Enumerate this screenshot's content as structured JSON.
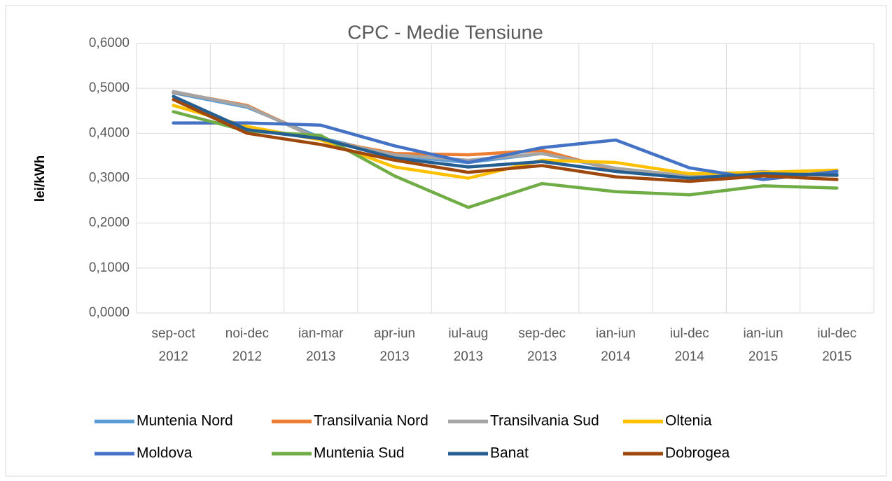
{
  "chart_data": {
    "type": "line",
    "title": "CPC - Medie Tensiune",
    "y_label": "lei/kWh",
    "categories": [
      "sep-oct 2012",
      "noi-dec 2012",
      "ian-mar 2013",
      "apr-iun 2013",
      "iul-aug 2013",
      "sep-dec 2013",
      "ian-iun 2014",
      "iul-dec 2014",
      "ian-iun 2015",
      "iul-dec 2015"
    ],
    "series": [
      {
        "name": "Muntenia Nord",
        "color": "#5b9bd5",
        "values": [
          0.49,
          0.458,
          0.39,
          0.35,
          0.335,
          0.355,
          0.32,
          0.305,
          0.308,
          0.31
        ]
      },
      {
        "name": "Transilvania Nord",
        "color": "#ed7d31",
        "values": [
          0.492,
          0.462,
          0.385,
          0.355,
          0.352,
          0.362,
          0.318,
          0.302,
          0.312,
          0.305
        ]
      },
      {
        "name": "Transilvania Sud",
        "color": "#a5a5a5",
        "values": [
          0.493,
          0.46,
          0.385,
          0.352,
          0.34,
          0.355,
          0.322,
          0.305,
          0.315,
          0.305
        ]
      },
      {
        "name": "Oltenia",
        "color": "#ffc000",
        "values": [
          0.462,
          0.415,
          0.385,
          0.325,
          0.3,
          0.34,
          0.335,
          0.31,
          0.313,
          0.318
        ]
      },
      {
        "name": "Moldova",
        "color": "#4472c4",
        "values": [
          0.423,
          0.423,
          0.418,
          0.372,
          0.335,
          0.368,
          0.385,
          0.323,
          0.297,
          0.315
        ]
      },
      {
        "name": "Muntenia Sud",
        "color": "#70ad47",
        "values": [
          0.448,
          0.405,
          0.395,
          0.305,
          0.235,
          0.288,
          0.27,
          0.263,
          0.283,
          0.278
        ]
      },
      {
        "name": "Banat",
        "color": "#255e91",
        "values": [
          0.482,
          0.408,
          0.388,
          0.345,
          0.325,
          0.337,
          0.315,
          0.3,
          0.31,
          0.307
        ]
      },
      {
        "name": "Dobrogea",
        "color": "#9e480e",
        "values": [
          0.475,
          0.4,
          0.375,
          0.34,
          0.313,
          0.328,
          0.303,
          0.293,
          0.305,
          0.297
        ]
      }
    ],
    "ylim": [
      0,
      0.6
    ],
    "yticks": [
      {
        "value": 0,
        "label": "0,0000"
      },
      {
        "value": 0.1,
        "label": "0,1000"
      },
      {
        "value": 0.2,
        "label": "0,2000"
      },
      {
        "value": 0.3,
        "label": "0,3000"
      },
      {
        "value": 0.4,
        "label": "0,4000"
      },
      {
        "value": 0.5,
        "label": "0,5000"
      },
      {
        "value": 0.6,
        "label": "0,6000"
      }
    ],
    "grid": true,
    "legend": "bottom"
  }
}
